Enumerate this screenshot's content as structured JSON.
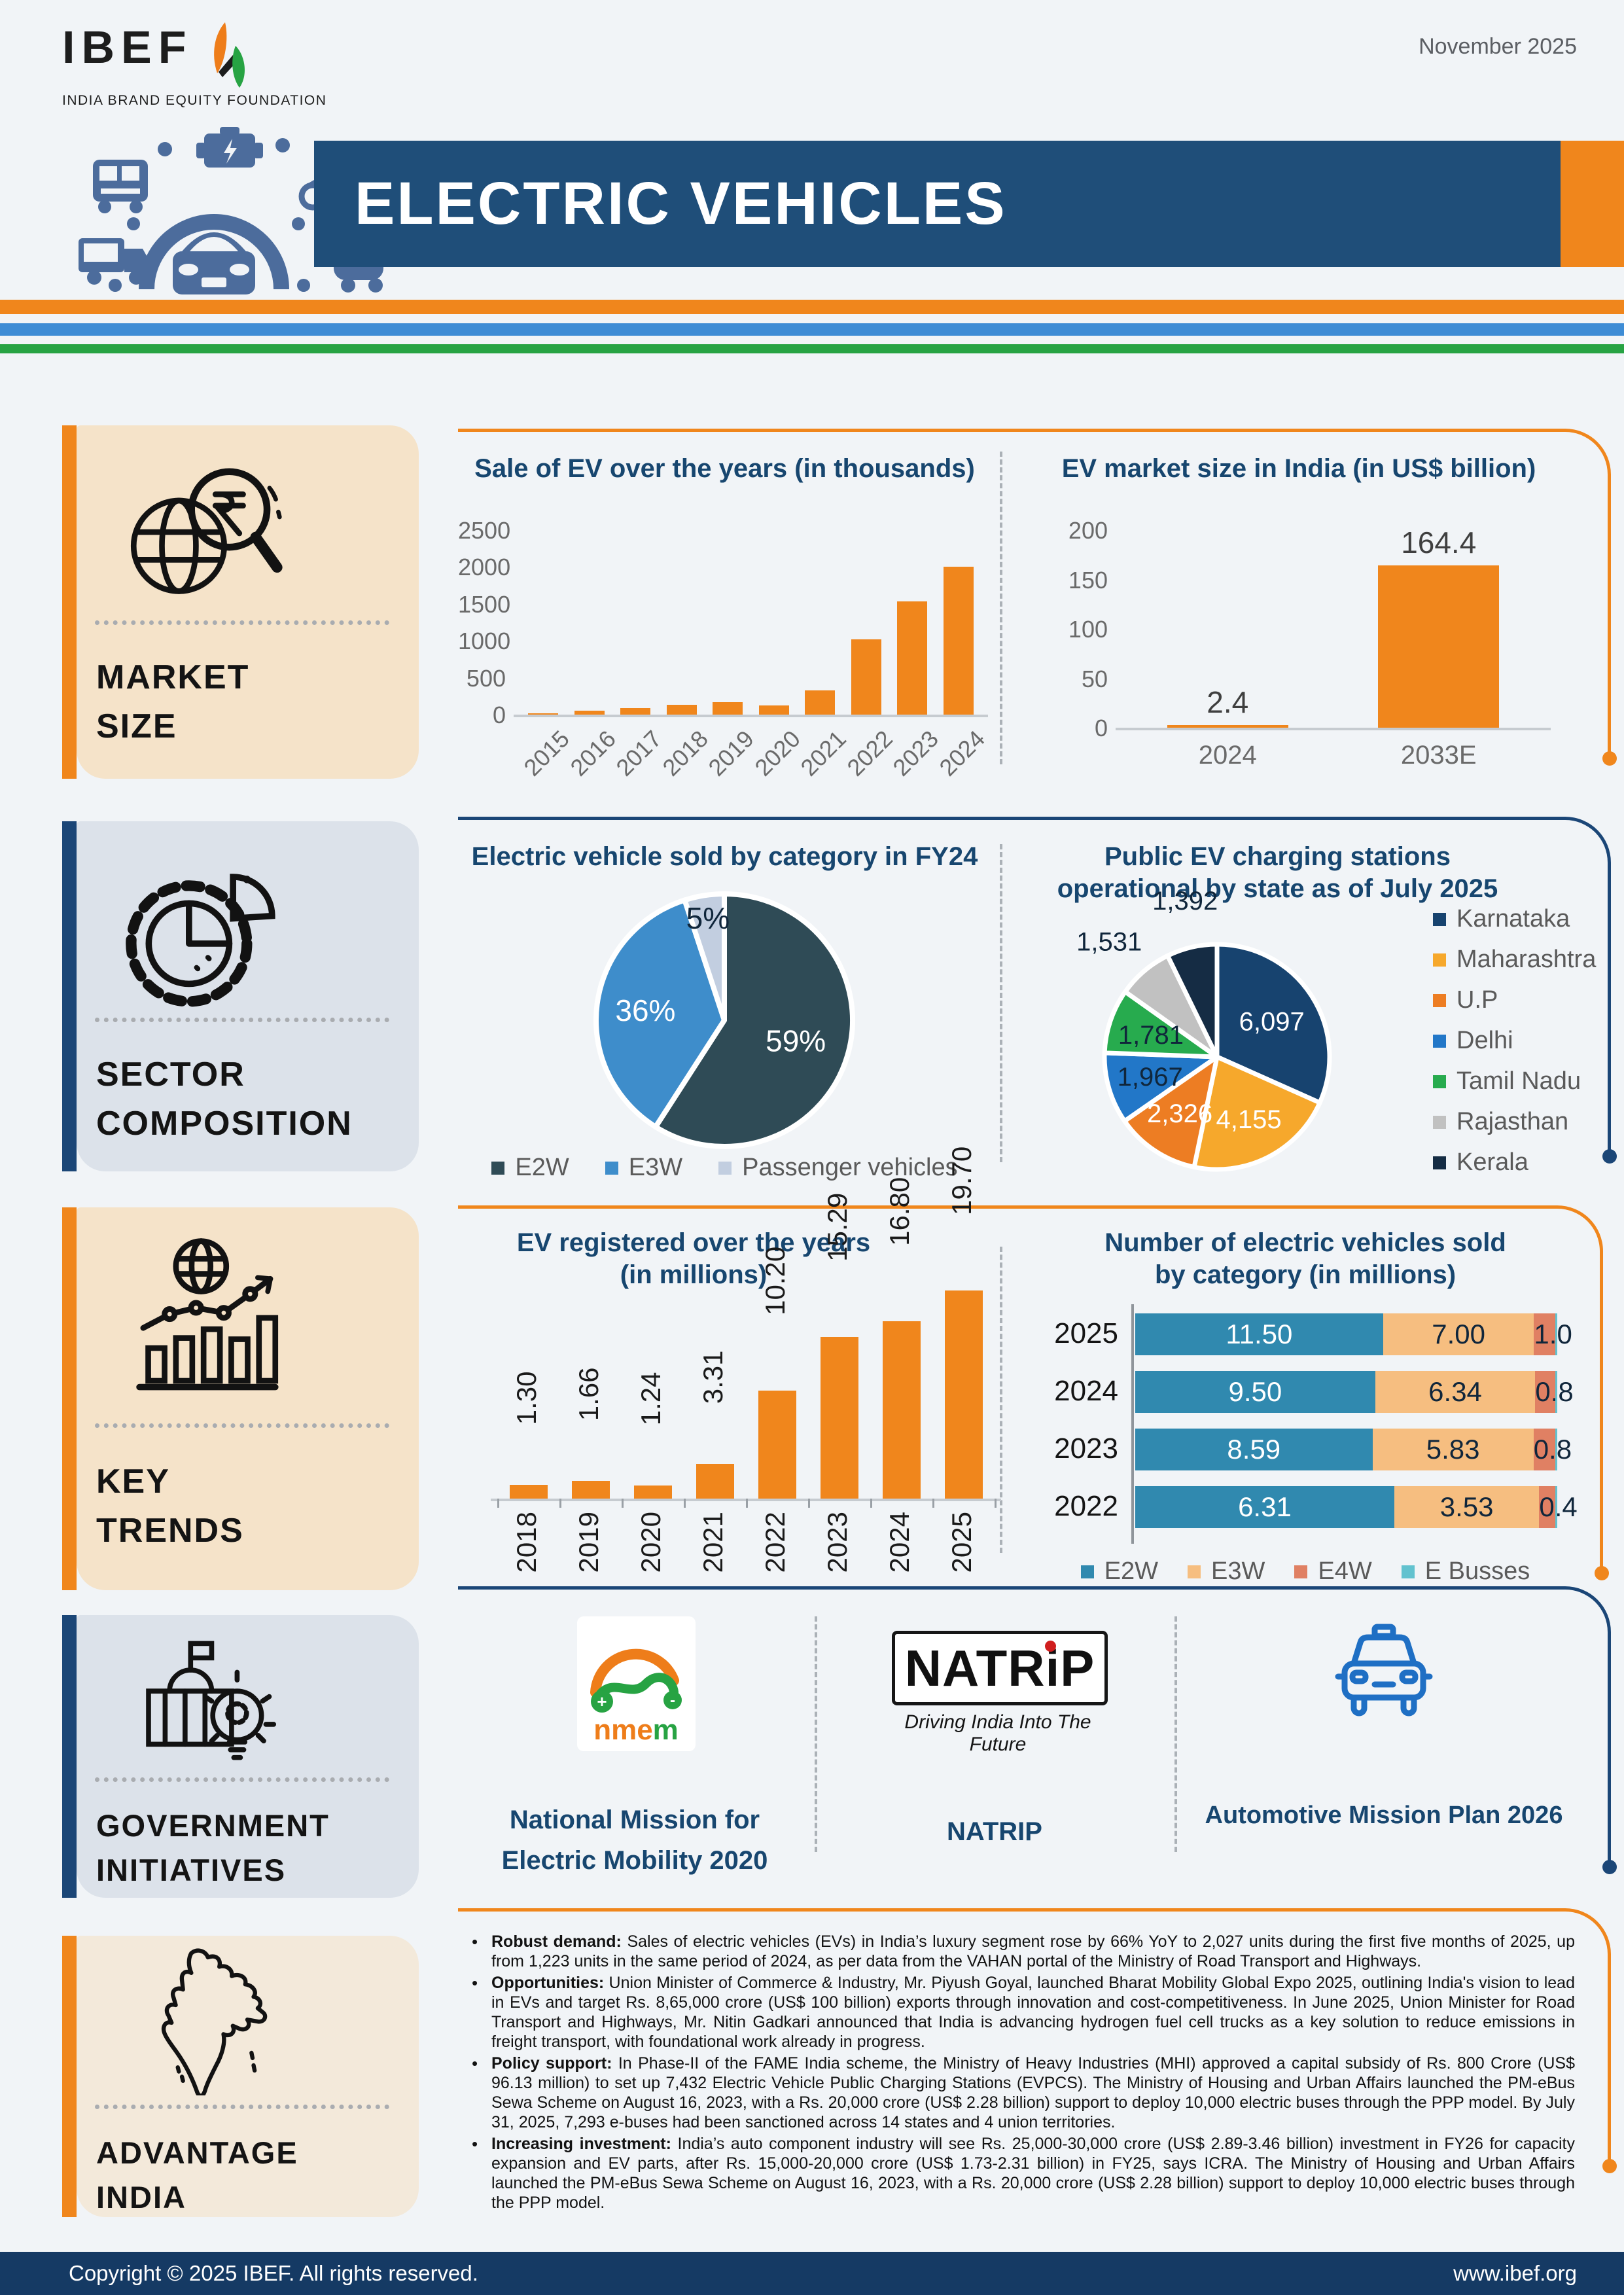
{
  "header": {
    "logo_text": "IBEF",
    "logo_tagline": "INDIA BRAND EQUITY FOUNDATION",
    "date": "November 2025",
    "title": "ELECTRIC VEHICLES"
  },
  "sidebar": {
    "sections": [
      {
        "label": "MARKET SIZE",
        "icon": "globe-rupee-magnifier-icon",
        "accent": "#F0861C"
      },
      {
        "label": "SECTOR COMPOSITION",
        "icon": "gear-pie-icon",
        "accent": "#1B4677"
      },
      {
        "label": "KEY TRENDS",
        "icon": "growth-chart-icon",
        "accent": "#F0861C"
      },
      {
        "label": "GOVERNMENT INITIATIVES",
        "icon": "government-bulb-icon",
        "accent": "#1B4677"
      },
      {
        "label": "ADVANTAGE INDIA",
        "icon": "india-map-icon",
        "accent": "#F0861C"
      }
    ]
  },
  "chart_data": [
    {
      "id": "ev_sales",
      "type": "bar",
      "title": "Sale of EV over the years (in thousands)",
      "categories": [
        "2015",
        "2016",
        "2017",
        "2018",
        "2019",
        "2020",
        "2021",
        "2022",
        "2023",
        "2024"
      ],
      "values": [
        16,
        50,
        90,
        130,
        165,
        120,
        330,
        1020,
        1530,
        2000
      ],
      "ylim": [
        0,
        2500
      ],
      "yticks": [
        0,
        500,
        1000,
        1500,
        2000,
        2500
      ],
      "bar_color": "#F0861C"
    },
    {
      "id": "market_size",
      "type": "bar",
      "title": "EV market size in India (in US$ billion)",
      "categories": [
        "2024",
        "2033E"
      ],
      "values": [
        2.4,
        164.4
      ],
      "value_labels": [
        "2.4",
        "164.4"
      ],
      "ylim": [
        0,
        200
      ],
      "yticks": [
        0,
        50,
        100,
        150,
        200
      ],
      "bar_color": "#F0861C"
    },
    {
      "id": "category_fy24",
      "type": "pie",
      "title": "Electric vehicle sold by category in FY24",
      "slices": [
        {
          "label": "E2W",
          "value": 59,
          "display": "59%",
          "color": "#2F4B56",
          "label_color": "#FFFFFF",
          "label_r": 0.58
        },
        {
          "label": "E3W",
          "value": 36,
          "display": "36%",
          "color": "#3E8DCB",
          "label_color": "#FFFFFF",
          "label_r": 0.62
        },
        {
          "label": "Passenger vehicles",
          "value": 5,
          "display": "5%",
          "color": "#C2CEE0",
          "label_color": "#10263B",
          "label_r": 0.82
        }
      ],
      "legend_position": "bottom"
    },
    {
      "id": "charging_stations",
      "type": "pie",
      "title": "Public EV charging stations operational by state as of July 2025",
      "slices": [
        {
          "label": "Karnataka",
          "value": 6097,
          "display": "6,097",
          "color": "#17436F",
          "label_color": "#FFFFFF",
          "label_r": 0.58
        },
        {
          "label": "Maharashtra",
          "value": 4155,
          "display": "4,155",
          "color": "#F6A82C",
          "label_color": "#FFFFFF",
          "label_r": 0.62
        },
        {
          "label": "U.P",
          "value": 2326,
          "display": "2,326",
          "color": "#ED7D23",
          "label_color": "#FFFFFF",
          "label_r": 0.6
        },
        {
          "label": "Delhi",
          "value": 1967,
          "display": "1,967",
          "color": "#2277C8",
          "label_color": "#10263B",
          "label_r": 0.62
        },
        {
          "label": "Tamil Nadu",
          "value": 1781,
          "display": "1,781",
          "color": "#27AB4E",
          "label_color": "#10263B",
          "label_r": 0.62
        },
        {
          "label": "Rajasthan",
          "value": 1531,
          "display": "1,531",
          "color": "#C1C1C1",
          "label_color": "#10263B",
          "label_r": 1.3,
          "dx": -20,
          "dy": -6
        },
        {
          "label": "Kerala",
          "value": 1392,
          "display": "1,392",
          "color": "#152C44",
          "label_color": "#10263B",
          "label_r": 1.26,
          "dy": -28
        }
      ],
      "legend_position": "right"
    },
    {
      "id": "ev_registered",
      "type": "bar",
      "title": "EV registered over the years (in millions)",
      "categories": [
        "2018",
        "2019",
        "2020",
        "2021",
        "2022",
        "2023",
        "2024",
        "2025"
      ],
      "values": [
        1.3,
        1.66,
        1.24,
        3.31,
        10.2,
        15.29,
        16.8,
        19.7
      ],
      "value_labels": [
        "1.30",
        "1.66",
        "1.24",
        "3.31",
        "10.20",
        "15.29",
        "16.80",
        "19.70"
      ],
      "ylim": [
        0,
        21
      ],
      "bar_color": "#F0861C"
    },
    {
      "id": "sold_by_category",
      "type": "stacked_bar",
      "title": "Number of electric vehicles sold by category (in millions)",
      "categories": [
        "2025",
        "2024",
        "2023",
        "2022"
      ],
      "series": [
        {
          "name": "E2W",
          "color": "#3089AF",
          "label_color": "#FFFFFF",
          "values": [
            11.5,
            9.5,
            8.59,
            6.31
          ],
          "labels": [
            "11.50",
            "9.50",
            "8.59",
            "6.31"
          ]
        },
        {
          "name": "E3W",
          "color": "#F6BE80",
          "label_color": "#10263B",
          "values": [
            7.0,
            6.34,
            5.83,
            3.53
          ],
          "labels": [
            "7.00",
            "6.34",
            "5.83",
            "3.53"
          ]
        },
        {
          "name": "E4W",
          "color": "#E08063",
          "label_color": "#10263B",
          "values": [
            1.0,
            0.8,
            0.8,
            0.4
          ],
          "labels": [
            "1.0",
            "0.8",
            "0.8",
            "0.4"
          ]
        },
        {
          "name": "E Busses",
          "color": "#62C2CF",
          "label_color": "#10263B",
          "values": [
            0.08,
            0.07,
            0.06,
            0.04
          ],
          "labels": [
            "",
            "",
            "",
            ""
          ]
        }
      ],
      "mode": "percent"
    }
  ],
  "initiatives": {
    "nmem_text": "nmem",
    "items": [
      {
        "name": "National Mission for Electric Mobility 2020"
      },
      {
        "name": "NATRIP",
        "logo_text": "NATRiP",
        "tagline": "Driving India Into The Future"
      },
      {
        "name": "Automotive Mission Plan 2026"
      }
    ]
  },
  "advantage": {
    "bullets": [
      {
        "lead": "Robust demand:",
        "text": " Sales of electric vehicles (EVs) in India’s luxury segment rose by 66% YoY to 2,027 units during the first five months of 2025, up from 1,223 units in the same period of 2024, as per data from the VAHAN portal of the Ministry of Road Transport and Highways."
      },
      {
        "lead": "Opportunities:",
        "text": " Union Minister of Commerce & Industry, Mr. Piyush Goyal, launched Bharat Mobility Global Expo 2025, outlining India's vision to lead in EVs and target Rs. 8,65,000 crore (US$ 100 billion) exports through innovation and cost-competitiveness. In June 2025, Union Minister for Road Transport and Highways, Mr. Nitin Gadkari announced that India is advancing hydrogen fuel cell trucks as a key solution to reduce emissions in freight transport, with foundational work already in progress."
      },
      {
        "lead": "Policy support:",
        "text": " In Phase-II of the FAME India scheme, the Ministry of Heavy Industries (MHI) approved a capital subsidy of Rs. 800 Crore (US$ 96.13 million) to set up 7,432 Electric Vehicle Public Charging Stations (EVPCS). The Ministry of Housing and Urban Affairs launched the PM-eBus Sewa Scheme on August 16, 2023, with a Rs. 20,000 crore (US$ 2.28 billion) support to deploy 10,000 electric buses through the PPP model. By July 31, 2025, 7,293 e-buses had been sanctioned across 14 states and 4 union territories."
      },
      {
        "lead": "Increasing investment:",
        "text": " India’s auto component industry will see Rs. 25,000-30,000 crore (US$ 2.89-3.46 billion) investment in FY26 for capacity expansion and EV parts, after Rs. 15,000-20,000 crore (US$ 1.73-2.31 billion) in FY25, says ICRA. The Ministry of Housing and Urban Affairs launched the PM-eBus Sewa Scheme on August 16, 2023, with a Rs. 20,000 crore (US$ 2.28 billion) support to deploy 10,000 electric buses through the PPP model."
      }
    ]
  },
  "footer": {
    "copyright": "Copyright © 2025 IBEF. All rights reserved.",
    "website": "www.ibef.org"
  }
}
